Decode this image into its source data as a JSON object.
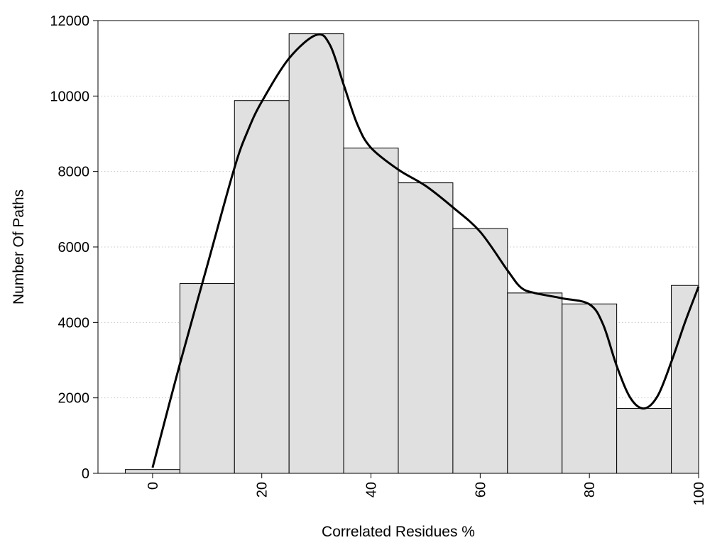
{
  "chart_data": {
    "type": "bar",
    "title": "",
    "xlabel": "Correlated Residues %",
    "ylabel": "Number Of Paths",
    "xlim": [
      -10,
      100
    ],
    "ylim": [
      0,
      12000
    ],
    "x_ticks": [
      0,
      20,
      40,
      60,
      80,
      100
    ],
    "x_tick_labels": [
      "0",
      "20",
      "40",
      "60",
      "80",
      "100"
    ],
    "y_ticks": [
      0,
      2000,
      4000,
      6000,
      8000,
      10000,
      12000
    ],
    "y_tick_labels": [
      "0",
      "2000",
      "4000",
      "6000",
      "8000",
      "10000",
      "12000"
    ],
    "grid": "horizontal dotted",
    "bin_width": 10,
    "bins": [
      {
        "x_start": -5,
        "x_end": 5,
        "value": 100
      },
      {
        "x_start": 5,
        "x_end": 15,
        "value": 5030
      },
      {
        "x_start": 15,
        "x_end": 25,
        "value": 9880
      },
      {
        "x_start": 25,
        "x_end": 35,
        "value": 11650
      },
      {
        "x_start": 35,
        "x_end": 45,
        "value": 8620
      },
      {
        "x_start": 45,
        "x_end": 55,
        "value": 7700
      },
      {
        "x_start": 55,
        "x_end": 65,
        "value": 6490
      },
      {
        "x_start": 65,
        "x_end": 75,
        "value": 4780
      },
      {
        "x_start": 75,
        "x_end": 85,
        "value": 4490
      },
      {
        "x_start": 85,
        "x_end": 95,
        "value": 1720
      },
      {
        "x_start": 95,
        "x_end": 105,
        "value": 4980
      }
    ],
    "curve": {
      "x": [
        0,
        5,
        10,
        15,
        17.5,
        20,
        25,
        30,
        32.5,
        35,
        37.5,
        40,
        45,
        50,
        55,
        60,
        65,
        67.5,
        70,
        75,
        80,
        82.5,
        85,
        87.5,
        90,
        92.5,
        95,
        97.5,
        100
      ],
      "y": [
        150,
        2900,
        5500,
        8100,
        9100,
        9850,
        11000,
        11620,
        11350,
        10300,
        9250,
        8630,
        8050,
        7620,
        7050,
        6400,
        5380,
        4920,
        4780,
        4640,
        4480,
        3950,
        2850,
        2000,
        1720,
        2050,
        2950,
        4000,
        4950
      ]
    },
    "bar_fill": "#e0e0e0",
    "bar_stroke": "#000000",
    "curve_color": "#000000",
    "grid_color": "#c8c8c8"
  }
}
